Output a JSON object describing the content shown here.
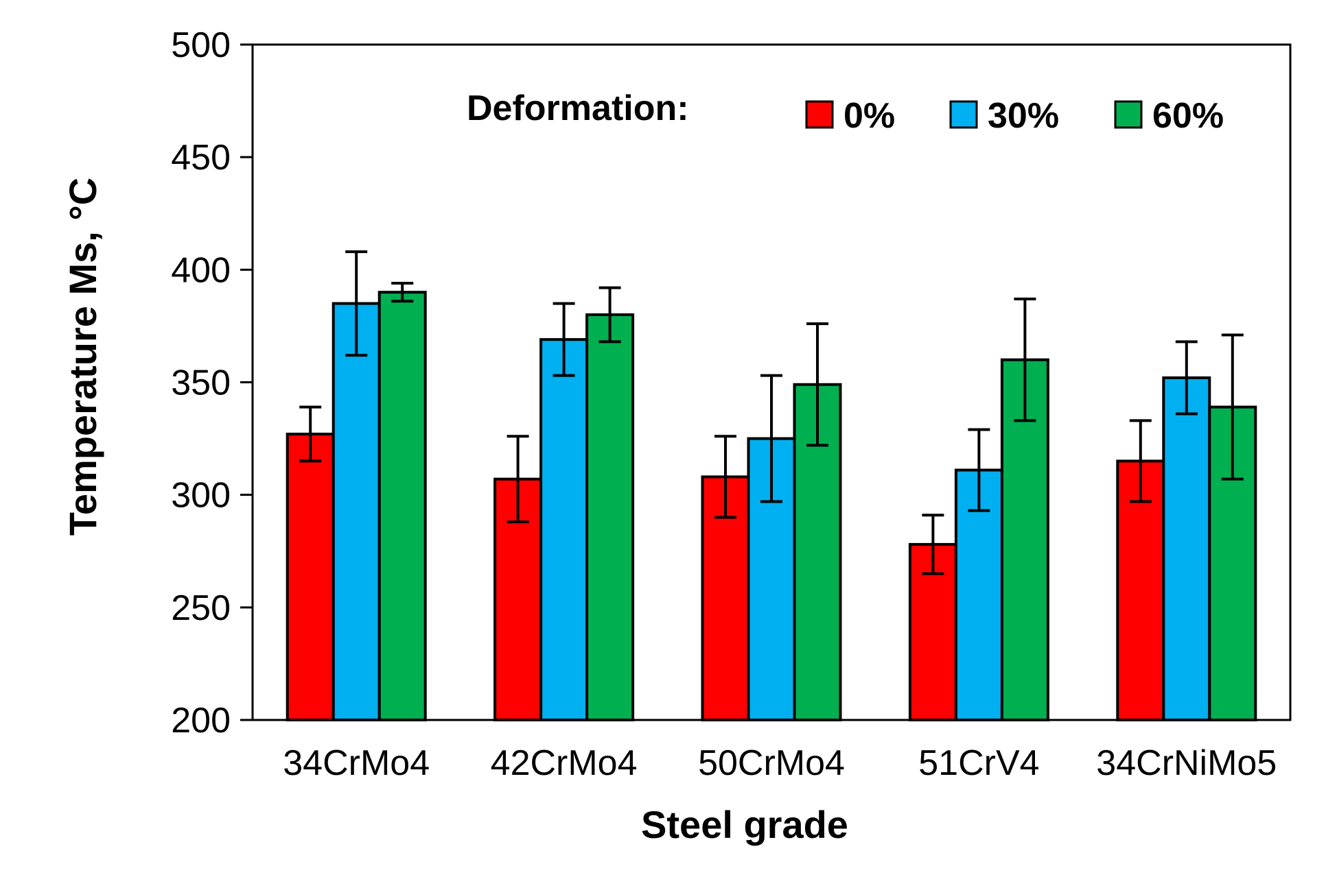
{
  "chart_data": {
    "type": "bar",
    "title": "",
    "xlabel": "Steel grade",
    "ylabel": "Temperature Ms, °C",
    "ylim": [
      200,
      500
    ],
    "yticks": [
      200,
      250,
      300,
      350,
      400,
      450,
      500
    ],
    "categories": [
      "34CrMo4",
      "42CrMo4",
      "50CrMo4",
      "51CrV4",
      "34CrNiMo5"
    ],
    "legend": {
      "title": "Deformation:",
      "position": "top-right"
    },
    "series": [
      {
        "name": "0%",
        "color": "#ff0000",
        "values": [
          327,
          307,
          308,
          278,
          315
        ],
        "errors": [
          12,
          19,
          18,
          13,
          18
        ]
      },
      {
        "name": "30%",
        "color": "#00b0f0",
        "values": [
          385,
          369,
          325,
          311,
          352
        ],
        "errors": [
          23,
          16,
          28,
          18,
          16
        ]
      },
      {
        "name": "60%",
        "color": "#00b050",
        "values": [
          390,
          380,
          349,
          360,
          339
        ],
        "errors": [
          4,
          12,
          27,
          27,
          32
        ]
      }
    ]
  }
}
